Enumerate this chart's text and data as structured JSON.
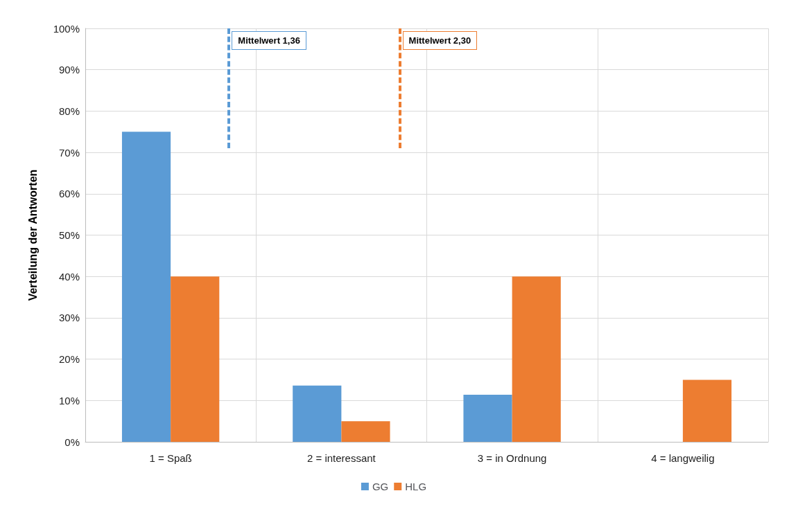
{
  "chart_data": {
    "type": "bar",
    "ylabel": "Verteilung der Antworten",
    "categories": [
      "1 = Spaß",
      "2 = interessant",
      "3 = in Ordnung",
      "4 = langweilig"
    ],
    "series": [
      {
        "name": "GG",
        "color": "#5b9bd5",
        "values": [
          75,
          13.6,
          11.4,
          0
        ]
      },
      {
        "name": "HLG",
        "color": "#ed7d31",
        "values": [
          40,
          5,
          40,
          15
        ]
      }
    ],
    "ylim": [
      0,
      100
    ],
    "yticks": [
      {
        "value": 0,
        "label": "0%"
      },
      {
        "value": 10,
        "label": "10%"
      },
      {
        "value": 20,
        "label": "20%"
      },
      {
        "value": 30,
        "label": "30%"
      },
      {
        "value": 40,
        "label": "40%"
      },
      {
        "value": 50,
        "label": "50%"
      },
      {
        "value": 60,
        "label": "60%"
      },
      {
        "value": 70,
        "label": "70%"
      },
      {
        "value": 80,
        "label": "80%"
      },
      {
        "value": 90,
        "label": "90%"
      },
      {
        "value": 100,
        "label": "100%"
      }
    ],
    "annotations": [
      "Mittelwert 1,36",
      "Mittelwert 2,30"
    ],
    "grid": true,
    "legend": "bottom"
  }
}
